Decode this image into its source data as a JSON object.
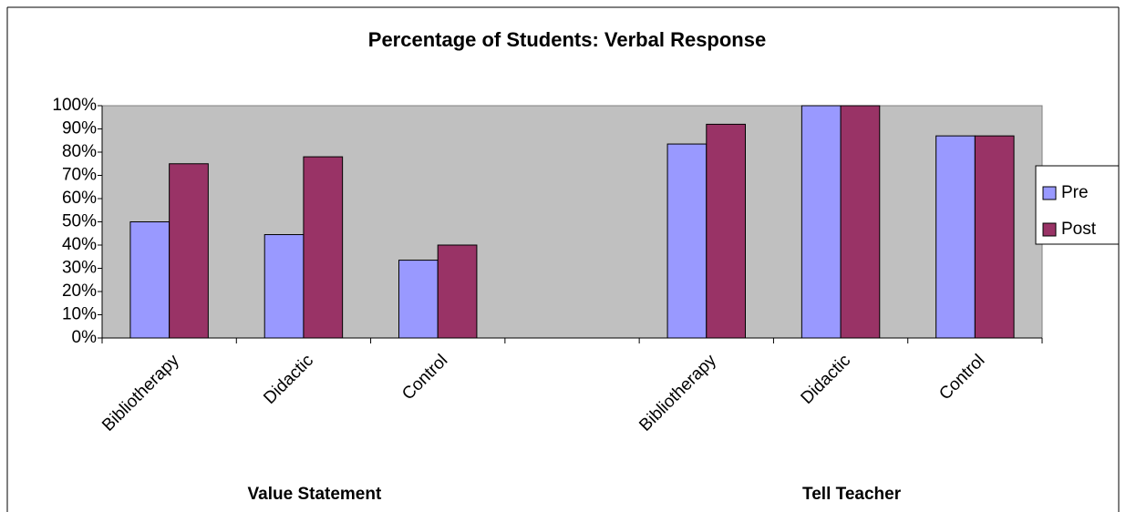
{
  "chart_data": {
    "type": "bar",
    "title": "Percentage of Students: Verbal Response",
    "categories": [
      "Bibliotherapy",
      "Didactic",
      "Control",
      null,
      "Bibliotherapy",
      "Didactic",
      "Control"
    ],
    "group_labels": [
      "Value Statement",
      "Tell Teacher"
    ],
    "series": [
      {
        "name": "Pre",
        "color": "#9999ff",
        "values": [
          50,
          44.5,
          33.5,
          null,
          83.5,
          100,
          87
        ]
      },
      {
        "name": "Post",
        "color": "#993366",
        "values": [
          75,
          78,
          40,
          null,
          92,
          100,
          87
        ]
      }
    ],
    "ylim": [
      0,
      100
    ],
    "yticks": [
      {
        "value": 0,
        "label": "0%"
      },
      {
        "value": 10,
        "label": "10%"
      },
      {
        "value": 20,
        "label": "20%"
      },
      {
        "value": 30,
        "label": "30%"
      },
      {
        "value": 40,
        "label": "40%"
      },
      {
        "value": 50,
        "label": "50%"
      },
      {
        "value": 60,
        "label": "60%"
      },
      {
        "value": 70,
        "label": "70%"
      },
      {
        "value": 80,
        "label": "80%"
      },
      {
        "value": 90,
        "label": "90%"
      },
      {
        "value": 100,
        "label": "100%"
      }
    ],
    "legend": "right",
    "plot_background": "#c0c0c0"
  }
}
